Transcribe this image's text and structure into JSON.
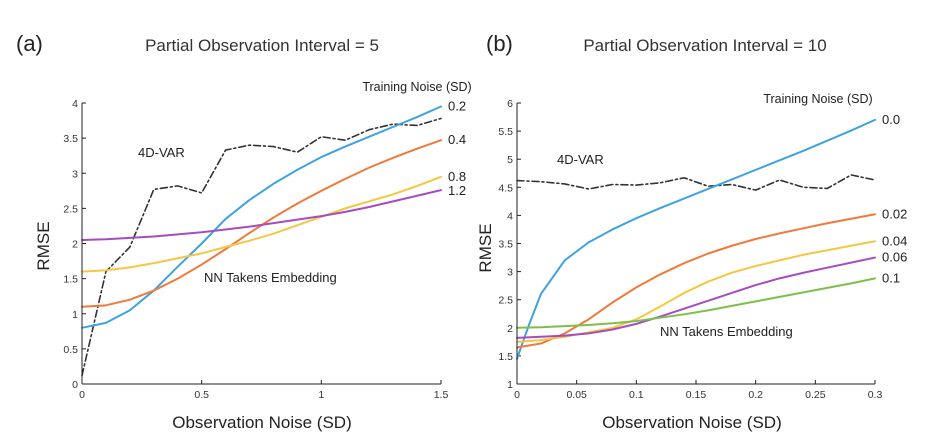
{
  "chart_data": [
    {
      "type": "line",
      "panel_label": "(a)",
      "title": "Partial Observation Interval = 5",
      "xlabel": "Observation Noise (SD)",
      "ylabel": "RMSE",
      "xlim": [
        0,
        1.5
      ],
      "ylim": [
        0,
        4
      ],
      "xticks": [
        0,
        0.5,
        1,
        1.5
      ],
      "xtick_labels": [
        "0",
        "0.5",
        "1",
        "1.5"
      ],
      "yticks": [
        0,
        0.5,
        1,
        1.5,
        2,
        2.5,
        3,
        3.5,
        4
      ],
      "ytick_labels": [
        "0",
        "0.5",
        "1",
        "1.5",
        "2",
        "2.5",
        "3",
        "3.5",
        "4"
      ],
      "legend_title": "Training Noise (SD)",
      "annotations": [
        "4D-VAR",
        "NN Takens Embedding"
      ],
      "series": [
        {
          "name": "4D-VAR",
          "label": "",
          "color": "#333333",
          "style": "dashdot",
          "x": [
            0,
            0.1,
            0.2,
            0.3,
            0.4,
            0.5,
            0.6,
            0.7,
            0.8,
            0.9,
            1.0,
            1.1,
            1.2,
            1.3,
            1.4,
            1.5
          ],
          "y": [
            0.12,
            1.6,
            1.95,
            2.77,
            2.82,
            2.72,
            3.33,
            3.4,
            3.38,
            3.3,
            3.52,
            3.47,
            3.62,
            3.7,
            3.68,
            3.78
          ]
        },
        {
          "name": "Training Noise 0.2",
          "label": "0.2",
          "color": "#3fa3de",
          "style": "solid",
          "x": [
            0,
            0.1,
            0.2,
            0.3,
            0.4,
            0.5,
            0.6,
            0.7,
            0.8,
            0.9,
            1.0,
            1.1,
            1.2,
            1.3,
            1.4,
            1.5
          ],
          "y": [
            0.8,
            0.87,
            1.05,
            1.33,
            1.67,
            2.0,
            2.35,
            2.62,
            2.85,
            3.05,
            3.23,
            3.38,
            3.52,
            3.66,
            3.8,
            3.95
          ]
        },
        {
          "name": "Training Noise 0.4",
          "label": "0.4",
          "color": "#ef7a3b",
          "style": "solid",
          "x": [
            0,
            0.1,
            0.2,
            0.3,
            0.4,
            0.5,
            0.6,
            0.7,
            0.8,
            0.9,
            1.0,
            1.1,
            1.2,
            1.3,
            1.4,
            1.5
          ],
          "y": [
            1.1,
            1.12,
            1.2,
            1.33,
            1.5,
            1.7,
            1.92,
            2.15,
            2.37,
            2.57,
            2.75,
            2.92,
            3.08,
            3.22,
            3.35,
            3.47
          ]
        },
        {
          "name": "Training Noise 0.8",
          "label": "0.8",
          "color": "#f4c742",
          "style": "solid",
          "x": [
            0,
            0.1,
            0.2,
            0.3,
            0.4,
            0.5,
            0.6,
            0.7,
            0.8,
            0.9,
            1.0,
            1.1,
            1.2,
            1.3,
            1.4,
            1.5
          ],
          "y": [
            1.6,
            1.62,
            1.66,
            1.72,
            1.79,
            1.86,
            1.95,
            2.04,
            2.14,
            2.26,
            2.38,
            2.5,
            2.6,
            2.7,
            2.82,
            2.95
          ]
        },
        {
          "name": "Training Noise 1.2",
          "label": "1.2",
          "color": "#a64cc0",
          "style": "solid",
          "x": [
            0,
            0.1,
            0.2,
            0.3,
            0.4,
            0.5,
            0.6,
            0.7,
            0.8,
            0.9,
            1.0,
            1.1,
            1.2,
            1.3,
            1.4,
            1.5
          ],
          "y": [
            2.05,
            2.06,
            2.08,
            2.1,
            2.13,
            2.16,
            2.2,
            2.24,
            2.29,
            2.34,
            2.39,
            2.45,
            2.52,
            2.6,
            2.68,
            2.76
          ]
        }
      ]
    },
    {
      "type": "line",
      "panel_label": "(b)",
      "title": "Partial Observation Interval = 10",
      "xlabel": "Observation Noise (SD)",
      "ylabel": "RMSE",
      "xlim": [
        0,
        0.3
      ],
      "ylim": [
        1,
        6
      ],
      "xticks": [
        0,
        0.05,
        0.1,
        0.15,
        0.2,
        0.25,
        0.3
      ],
      "xtick_labels": [
        "0",
        "0.05",
        "0.1",
        "0.15",
        "0.2",
        "0.25",
        "0.3"
      ],
      "yticks": [
        1,
        1.5,
        2,
        2.5,
        3,
        3.5,
        4,
        4.5,
        5,
        5.5,
        6
      ],
      "ytick_labels": [
        "1",
        "1.5",
        "2",
        "2.5",
        "3",
        "3.5",
        "4",
        "4.5",
        "5",
        "5.5",
        "6"
      ],
      "legend_title": "Training Noise (SD)",
      "annotations": [
        "4D-VAR",
        "NN Takens Embedding"
      ],
      "series": [
        {
          "name": "4D-VAR",
          "label": "",
          "color": "#333333",
          "style": "dashdot",
          "x": [
            0,
            0.02,
            0.04,
            0.06,
            0.08,
            0.1,
            0.12,
            0.14,
            0.16,
            0.18,
            0.2,
            0.22,
            0.24,
            0.26,
            0.28,
            0.3
          ],
          "y": [
            4.62,
            4.6,
            4.56,
            4.47,
            4.55,
            4.54,
            4.58,
            4.67,
            4.52,
            4.55,
            4.45,
            4.63,
            4.5,
            4.48,
            4.72,
            4.63
          ]
        },
        {
          "name": "Training Noise 0.0",
          "label": "0.0",
          "color": "#3fa3de",
          "style": "solid",
          "x": [
            0,
            0.01,
            0.02,
            0.04,
            0.06,
            0.08,
            0.1,
            0.12,
            0.14,
            0.16,
            0.18,
            0.2,
            0.22,
            0.24,
            0.26,
            0.28,
            0.3
          ],
          "y": [
            1.45,
            2.05,
            2.6,
            3.2,
            3.52,
            3.75,
            3.95,
            4.13,
            4.3,
            4.47,
            4.64,
            4.81,
            4.98,
            5.15,
            5.33,
            5.51,
            5.7
          ]
        },
        {
          "name": "Training Noise 0.02",
          "label": "0.02",
          "color": "#ef7a3b",
          "style": "solid",
          "x": [
            0,
            0.02,
            0.04,
            0.06,
            0.08,
            0.1,
            0.12,
            0.14,
            0.16,
            0.18,
            0.2,
            0.22,
            0.24,
            0.26,
            0.28,
            0.3
          ],
          "y": [
            1.65,
            1.72,
            1.9,
            2.15,
            2.45,
            2.72,
            2.95,
            3.15,
            3.32,
            3.46,
            3.58,
            3.68,
            3.77,
            3.86,
            3.94,
            4.02
          ]
        },
        {
          "name": "Training Noise 0.04",
          "label": "0.04",
          "color": "#f4c742",
          "style": "solid",
          "x": [
            0,
            0.02,
            0.04,
            0.06,
            0.08,
            0.1,
            0.12,
            0.14,
            0.16,
            0.18,
            0.2,
            0.22,
            0.24,
            0.26,
            0.28,
            0.3
          ],
          "y": [
            1.75,
            1.78,
            1.84,
            1.92,
            2.0,
            2.15,
            2.38,
            2.62,
            2.82,
            2.98,
            3.1,
            3.2,
            3.3,
            3.38,
            3.46,
            3.54
          ]
        },
        {
          "name": "Training Noise 0.06",
          "label": "0.06",
          "color": "#a64cc0",
          "style": "solid",
          "x": [
            0,
            0.02,
            0.04,
            0.06,
            0.08,
            0.1,
            0.12,
            0.14,
            0.16,
            0.18,
            0.2,
            0.22,
            0.24,
            0.26,
            0.28,
            0.3
          ],
          "y": [
            1.82,
            1.84,
            1.86,
            1.9,
            1.97,
            2.07,
            2.2,
            2.34,
            2.48,
            2.62,
            2.76,
            2.88,
            2.98,
            3.07,
            3.16,
            3.25
          ]
        },
        {
          "name": "Training Noise 0.1",
          "label": "0.1",
          "color": "#7cbf4a",
          "style": "solid",
          "x": [
            0,
            0.02,
            0.04,
            0.06,
            0.08,
            0.1,
            0.12,
            0.14,
            0.16,
            0.18,
            0.2,
            0.22,
            0.24,
            0.26,
            0.28,
            0.3
          ],
          "y": [
            2.0,
            2.01,
            2.03,
            2.05,
            2.08,
            2.12,
            2.18,
            2.24,
            2.31,
            2.39,
            2.47,
            2.55,
            2.63,
            2.71,
            2.79,
            2.88
          ]
        }
      ]
    }
  ]
}
